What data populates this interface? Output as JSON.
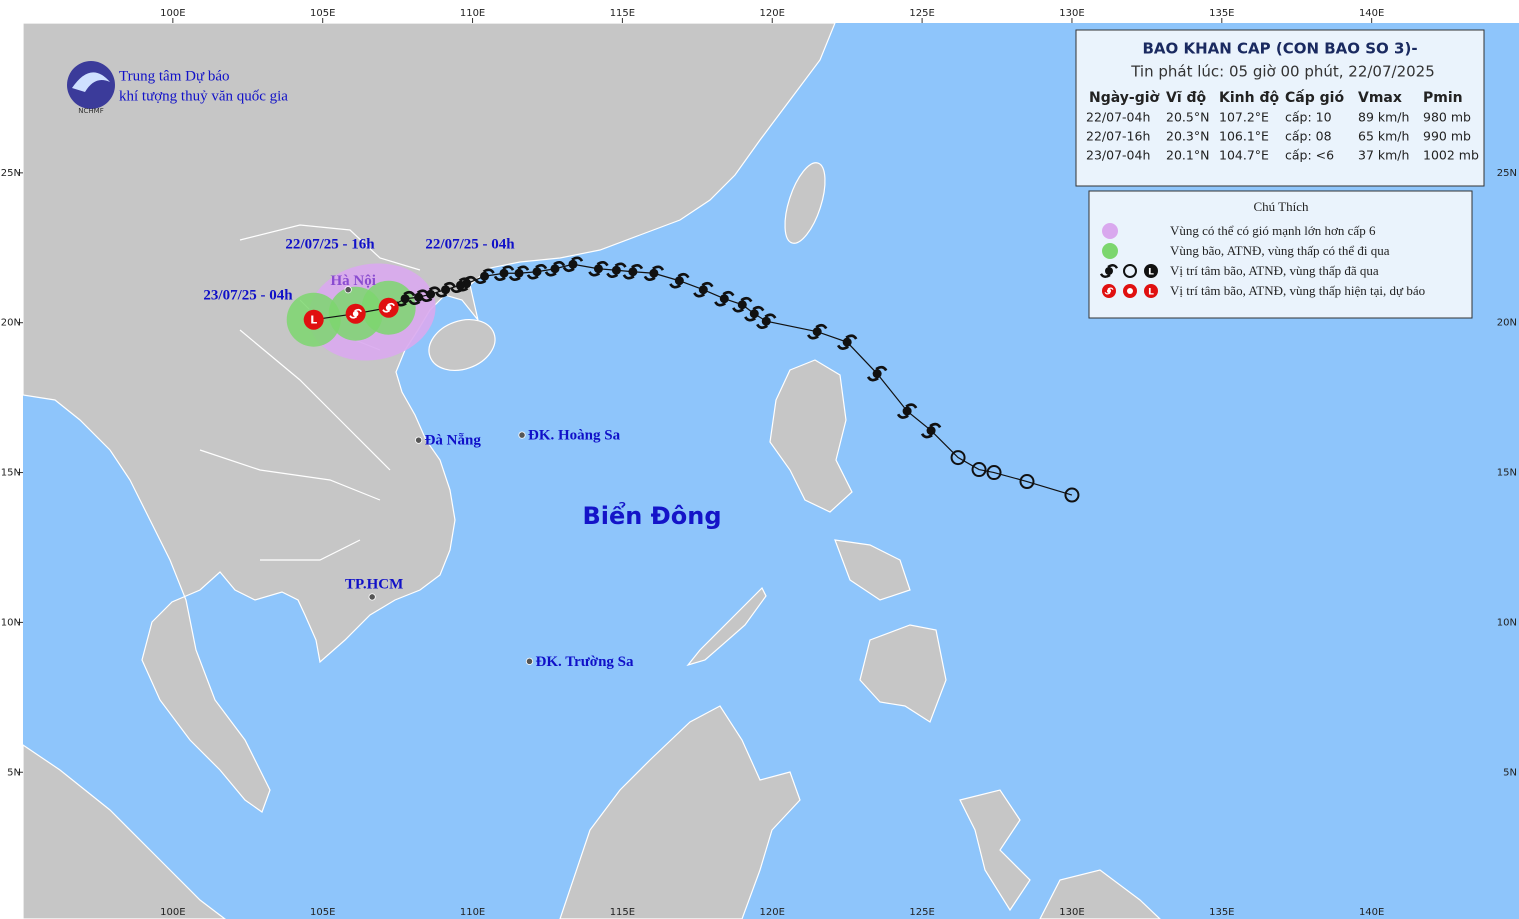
{
  "header": {
    "org_line1": "Trung tâm Dự báo",
    "org_line2": "khí tượng thuỷ văn quốc gia",
    "logo": "NCHMF"
  },
  "axes": {
    "lon_ticks": [
      {
        "value": 100,
        "label": "100E"
      },
      {
        "value": 105,
        "label": "105E"
      },
      {
        "value": 110,
        "label": "110E"
      },
      {
        "value": 115,
        "label": "115E"
      },
      {
        "value": 120,
        "label": "120E"
      },
      {
        "value": 125,
        "label": "125E"
      },
      {
        "value": 130,
        "label": "130E"
      },
      {
        "value": 135,
        "label": "135E"
      },
      {
        "value": 140,
        "label": "140E"
      }
    ],
    "lat_ticks": [
      {
        "value": 5,
        "label": "5N"
      },
      {
        "value": 10,
        "label": "10N"
      },
      {
        "value": 15,
        "label": "15N"
      },
      {
        "value": 20,
        "label": "20N"
      },
      {
        "value": 25,
        "label": "25N"
      }
    ]
  },
  "bulletin": {
    "title": "BAO KHAN CAP (CON BAO SO 3)-",
    "issued": "Tin phát lúc: 05 giờ 00 phút, 22/07/2025",
    "columns": [
      "Ngày-giờ",
      "Vĩ độ",
      "Kinh độ",
      "Cấp gió",
      "Vmax",
      "Pmin"
    ],
    "rows": [
      [
        "22/07-04h",
        "20.5°N",
        "107.2°E",
        "cấp: 10",
        "89 km/h",
        "980 mb"
      ],
      [
        "22/07-16h",
        "20.3°N",
        "106.1°E",
        "cấp: 08",
        "65 km/h",
        "990 mb"
      ],
      [
        "23/07-04h",
        "20.1°N",
        "104.7°E",
        "cấp: <6",
        "37 km/h",
        "1002 mb"
      ]
    ]
  },
  "legend": {
    "title": "Chú Thích",
    "items": [
      "Vùng có thể có gió mạnh lớn hơn cấp 6",
      "Vùng bão, ATNĐ, vùng thấp có thể đi qua",
      "Vị trí tâm bão, ATNĐ, vùng thấp đã qua",
      "Vị trí tâm bão, ATNĐ, vùng thấp hiện tại, dự báo"
    ]
  },
  "forecast_labels": [
    "22/07/25 - 04h",
    "22/07/25 - 16h",
    "23/07/25 - 04h"
  ],
  "places": [
    {
      "name": "Hà Nội",
      "lon": 105.85,
      "lat": 21.1
    },
    {
      "name": "Đà Nẵng",
      "lon": 108.2,
      "lat": 16.08
    },
    {
      "name": "ĐK. Hoàng Sa",
      "lon": 111.65,
      "lat": 16.25
    },
    {
      "name": "TP.HCM",
      "lon": 106.65,
      "lat": 10.85
    },
    {
      "name": "ĐK. Trường Sa",
      "lon": 111.9,
      "lat": 8.7
    }
  ],
  "sea_name": "Biển Đông",
  "track": {
    "depression": [
      [
        130.0,
        14.25
      ],
      [
        128.5,
        14.7
      ],
      [
        127.4,
        15.0
      ],
      [
        126.9,
        15.1
      ],
      [
        126.2,
        15.5
      ]
    ],
    "storm": [
      [
        125.3,
        16.4
      ],
      [
        124.5,
        17.05
      ],
      [
        123.5,
        18.3
      ],
      [
        122.5,
        19.35
      ],
      [
        121.5,
        19.7
      ],
      [
        119.8,
        20.05
      ],
      [
        119.4,
        20.3
      ],
      [
        119.0,
        20.6
      ],
      [
        118.4,
        20.8
      ],
      [
        117.7,
        21.1
      ],
      [
        116.9,
        21.4
      ],
      [
        116.05,
        21.65
      ],
      [
        115.35,
        21.7
      ],
      [
        114.8,
        21.75
      ],
      [
        114.2,
        21.8
      ],
      [
        113.35,
        21.95
      ],
      [
        112.75,
        21.8
      ],
      [
        112.15,
        21.7
      ],
      [
        111.55,
        21.65
      ],
      [
        111.05,
        21.65
      ],
      [
        110.4,
        21.55
      ],
      [
        109.8,
        21.3
      ],
      [
        109.6,
        21.25
      ],
      [
        109.1,
        21.1
      ],
      [
        108.6,
        20.95
      ],
      [
        108.2,
        20.85
      ],
      [
        107.75,
        20.8
      ]
    ],
    "forecast": [
      [
        107.2,
        20.5
      ],
      [
        106.1,
        20.3
      ],
      [
        104.7,
        20.1
      ]
    ],
    "low_symbol": "L"
  }
}
